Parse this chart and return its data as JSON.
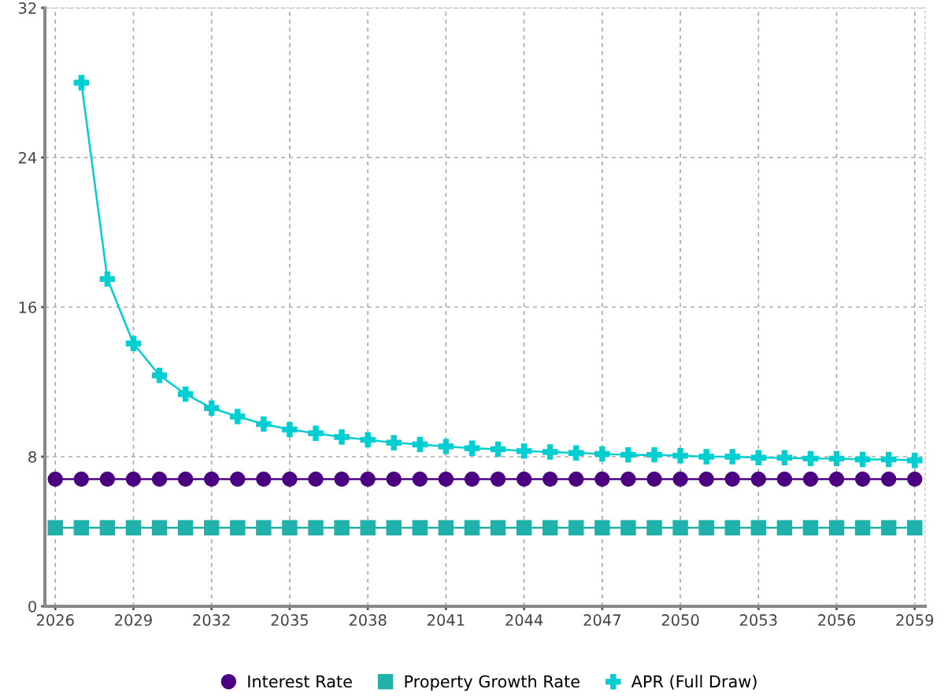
{
  "chart_data": {
    "type": "line",
    "x": [
      2026,
      2027,
      2028,
      2029,
      2030,
      2031,
      2032,
      2033,
      2034,
      2035,
      2036,
      2037,
      2038,
      2039,
      2040,
      2041,
      2042,
      2043,
      2044,
      2045,
      2046,
      2047,
      2048,
      2049,
      2050,
      2051,
      2052,
      2053,
      2054,
      2055,
      2056,
      2057,
      2058,
      2059
    ],
    "series": [
      {
        "name": "Interest Rate",
        "color": "#4b0082",
        "marker": "circle",
        "values": [
          6.8,
          6.8,
          6.8,
          6.8,
          6.8,
          6.8,
          6.8,
          6.8,
          6.8,
          6.8,
          6.8,
          6.8,
          6.8,
          6.8,
          6.8,
          6.8,
          6.8,
          6.8,
          6.8,
          6.8,
          6.8,
          6.8,
          6.8,
          6.8,
          6.8,
          6.8,
          6.8,
          6.8,
          6.8,
          6.8,
          6.8,
          6.8,
          6.8,
          6.8
        ]
      },
      {
        "name": "Property Growth Rate",
        "color": "#20b2aa",
        "marker": "square",
        "values": [
          4.2,
          4.2,
          4.2,
          4.2,
          4.2,
          4.2,
          4.2,
          4.2,
          4.2,
          4.2,
          4.2,
          4.2,
          4.2,
          4.2,
          4.2,
          4.2,
          4.2,
          4.2,
          4.2,
          4.2,
          4.2,
          4.2,
          4.2,
          4.2,
          4.2,
          4.2,
          4.2,
          4.2,
          4.2,
          4.2,
          4.2,
          4.2,
          4.2,
          4.2
        ]
      },
      {
        "name": "APR (Full Draw)",
        "color": "#00ced1",
        "marker": "cross",
        "values": [
          null,
          28.0,
          17.5,
          14.05,
          12.35,
          11.35,
          10.6,
          10.15,
          9.75,
          9.45,
          9.25,
          9.05,
          8.9,
          8.75,
          8.65,
          8.55,
          8.45,
          8.4,
          8.3,
          8.25,
          8.2,
          8.15,
          8.1,
          8.1,
          8.05,
          8.0,
          8.0,
          7.95,
          7.95,
          7.9,
          7.9,
          7.85,
          7.85,
          7.8
        ]
      }
    ],
    "xlim": [
      2025.6,
      2059.4
    ],
    "xticks": [
      2026,
      2029,
      2032,
      2035,
      2038,
      2041,
      2044,
      2047,
      2050,
      2053,
      2056,
      2059
    ],
    "ylim": [
      0,
      32
    ],
    "yticks": [
      0,
      8,
      16,
      24,
      32
    ],
    "grid": true,
    "legend": "bottom",
    "line_style": "solid"
  }
}
